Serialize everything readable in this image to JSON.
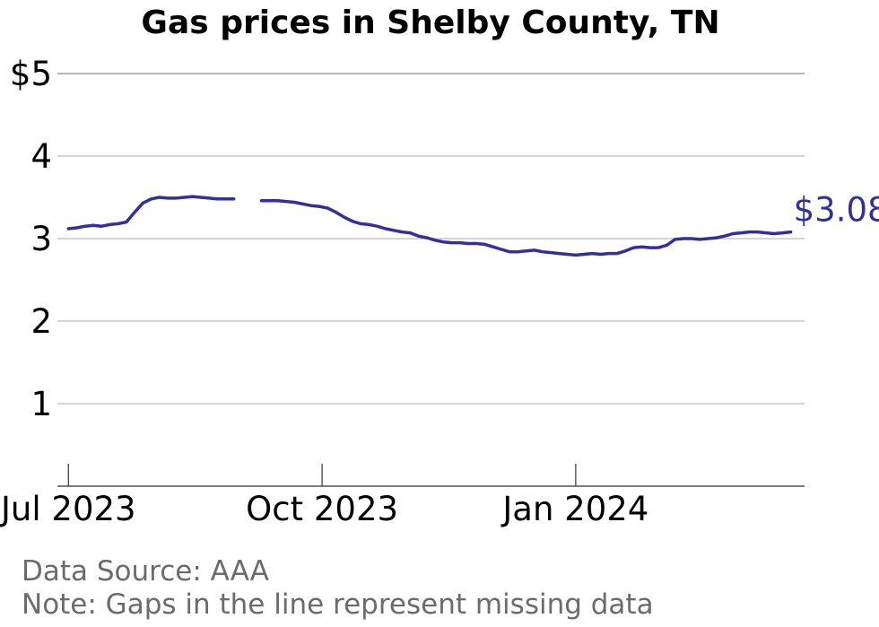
{
  "chart_data": {
    "type": "line",
    "title": "Gas prices in Shelby County, TN",
    "xlabel": "",
    "ylabel": "",
    "xlim": [
      "2023-06-27",
      "2024-03-24"
    ],
    "ylim": [
      0,
      5
    ],
    "y_ticks": [
      {
        "value": 1,
        "label": "1"
      },
      {
        "value": 2,
        "label": "2"
      },
      {
        "value": 3,
        "label": "3"
      },
      {
        "value": 4,
        "label": "4"
      },
      {
        "value": 5,
        "label": "$5"
      }
    ],
    "x_ticks": [
      {
        "date": "2023-07-01",
        "label": "Jul 2023"
      },
      {
        "date": "2023-10-01",
        "label": "Oct 2023"
      },
      {
        "date": "2024-01-01",
        "label": "Jan 2024"
      }
    ],
    "grid": true,
    "legend": "none",
    "line_color": "#33309a",
    "end_label": "$3.08",
    "series": [
      {
        "segments": [
          {
            "x": [
              "2023-07-01",
              "2023-07-04",
              "2023-07-07",
              "2023-07-10",
              "2023-07-13",
              "2023-07-16",
              "2023-07-19",
              "2023-07-22",
              "2023-07-25",
              "2023-07-28",
              "2023-07-31",
              "2023-08-03",
              "2023-08-06",
              "2023-08-09",
              "2023-08-12",
              "2023-08-15",
              "2023-08-18",
              "2023-08-21",
              "2023-08-24",
              "2023-08-27",
              "2023-08-30"
            ],
            "y": [
              3.12,
              3.13,
              3.15,
              3.16,
              3.15,
              3.17,
              3.18,
              3.2,
              3.32,
              3.43,
              3.48,
              3.5,
              3.49,
              3.49,
              3.5,
              3.51,
              3.5,
              3.49,
              3.48,
              3.48,
              3.48
            ]
          },
          {
            "x": [
              "2023-09-09",
              "2023-09-12",
              "2023-09-15",
              "2023-09-18",
              "2023-09-21",
              "2023-09-24",
              "2023-09-27",
              "2023-09-30",
              "2023-10-03",
              "2023-10-06",
              "2023-10-09",
              "2023-10-12",
              "2023-10-15",
              "2023-10-18",
              "2023-10-21",
              "2023-10-24",
              "2023-10-27",
              "2023-10-30",
              "2023-11-02",
              "2023-11-05",
              "2023-11-08",
              "2023-11-11",
              "2023-11-14",
              "2023-11-17",
              "2023-11-20",
              "2023-11-23",
              "2023-11-26",
              "2023-11-29",
              "2023-12-02",
              "2023-12-05",
              "2023-12-08",
              "2023-12-11",
              "2023-12-14",
              "2023-12-17",
              "2023-12-20",
              "2023-12-23",
              "2023-12-26",
              "2023-12-29",
              "2024-01-01",
              "2024-01-04",
              "2024-01-07",
              "2024-01-10",
              "2024-01-13",
              "2024-01-16",
              "2024-01-19",
              "2024-01-22",
              "2024-01-25",
              "2024-01-28",
              "2024-01-31",
              "2024-02-03",
              "2024-02-06",
              "2024-02-09",
              "2024-02-12",
              "2024-02-15",
              "2024-02-18",
              "2024-02-21",
              "2024-02-24",
              "2024-02-27",
              "2024-03-01",
              "2024-03-04",
              "2024-03-07",
              "2024-03-10",
              "2024-03-13",
              "2024-03-16",
              "2024-03-19"
            ],
            "y": [
              3.46,
              3.46,
              3.46,
              3.45,
              3.44,
              3.42,
              3.4,
              3.39,
              3.37,
              3.32,
              3.26,
              3.21,
              3.18,
              3.17,
              3.15,
              3.12,
              3.1,
              3.08,
              3.07,
              3.03,
              3.01,
              2.98,
              2.96,
              2.95,
              2.95,
              2.94,
              2.94,
              2.93,
              2.9,
              2.87,
              2.84,
              2.84,
              2.85,
              2.86,
              2.84,
              2.83,
              2.82,
              2.81,
              2.8,
              2.81,
              2.82,
              2.81,
              2.82,
              2.82,
              2.85,
              2.89,
              2.9,
              2.89,
              2.89,
              2.92,
              2.99,
              3.0,
              3.0,
              2.99,
              3.0,
              3.01,
              3.03,
              3.06,
              3.07,
              3.08,
              3.08,
              3.07,
              3.06,
              3.07,
              3.08
            ]
          }
        ]
      }
    ],
    "notes": [
      "Data Source: AAA",
      "Note: Gaps in the line represent missing data"
    ]
  }
}
